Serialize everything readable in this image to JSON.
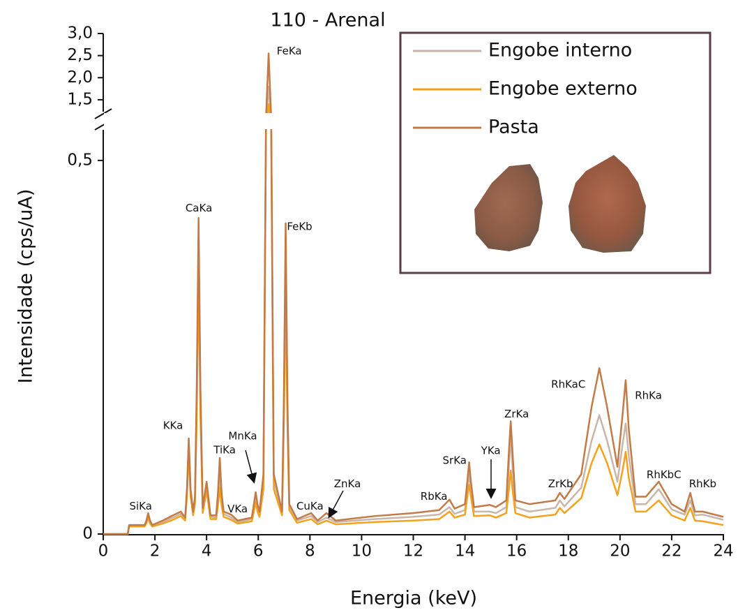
{
  "chart_data": {
    "type": "line",
    "title": "110 - Arenal",
    "x_label": "Energia (keV)",
    "y_label": "Intensidade (cps/uA)",
    "xlim": [
      0,
      24
    ],
    "xticks": [
      0,
      2,
      4,
      6,
      8,
      10,
      12,
      14,
      16,
      18,
      20,
      22,
      24
    ],
    "ylim": [
      0,
      3.0
    ],
    "y_break": [
      0.54,
      1.23
    ],
    "yticks": [
      0,
      {
        "value": 0.5,
        "label": "0,5"
      },
      {
        "value": 1.5,
        "label": "1,5"
      },
      {
        "value": 2.0,
        "label": "2,0"
      },
      {
        "value": 2.5,
        "label": "2,5"
      },
      {
        "value": 3.0,
        "label": "3,0"
      }
    ],
    "x": [
      0,
      0.95,
      1.0,
      1.6,
      1.67,
      1.74,
      1.81,
      1.9,
      2.3,
      2.7,
      3.0,
      3.17,
      3.24,
      3.31,
      3.38,
      3.48,
      3.55,
      3.62,
      3.69,
      3.76,
      3.85,
      4.0,
      4.15,
      4.37,
      4.44,
      4.51,
      4.58,
      4.66,
      4.95,
      5.2,
      5.75,
      5.83,
      5.9,
      5.97,
      6.05,
      6.2,
      6.3,
      6.4,
      6.5,
      6.6,
      6.92,
      6.99,
      7.06,
      7.13,
      7.2,
      7.5,
      8.05,
      8.3,
      8.64,
      9.0,
      10.5,
      12.0,
      13.0,
      13.4,
      13.6,
      14.0,
      14.09,
      14.16,
      14.23,
      14.35,
      14.96,
      15.2,
      15.6,
      15.7,
      15.77,
      15.84,
      15.95,
      16.5,
      17.5,
      17.67,
      17.85,
      18.5,
      18.9,
      19.2,
      19.5,
      19.9,
      20.1,
      20.22,
      20.34,
      20.6,
      21.0,
      21.5,
      22.0,
      22.5,
      22.72,
      22.9,
      23.2,
      24
    ],
    "series": [
      {
        "name": "Engobe interno",
        "color": "#c9b6aa",
        "values": [
          0,
          0,
          0.011,
          0.011,
          0.016,
          0.025,
          0.016,
          0.011,
          0.016,
          0.022,
          0.027,
          0.02,
          0.058,
          0.125,
          0.058,
          0.028,
          0.045,
          0.185,
          0.395,
          0.185,
          0.032,
          0.065,
          0.023,
          0.022,
          0.045,
          0.08,
          0.045,
          0.027,
          0.022,
          0.016,
          0.02,
          0.036,
          0.05,
          0.036,
          0.027,
          0.07,
          0.8,
          1.8,
          0.8,
          0.07,
          0.028,
          0.165,
          0.38,
          0.165,
          0.037,
          0.018,
          0.024,
          0.016,
          0.022,
          0.016,
          0.02,
          0.023,
          0.026,
          0.036,
          0.027,
          0.032,
          0.06,
          0.08,
          0.06,
          0.03,
          0.03,
          0.028,
          0.036,
          0.09,
          0.13,
          0.09,
          0.036,
          0.03,
          0.035,
          0.045,
          0.037,
          0.062,
          0.125,
          0.159,
          0.125,
          0.07,
          0.12,
          0.148,
          0.105,
          0.04,
          0.04,
          0.06,
          0.033,
          0.026,
          0.045,
          0.025,
          0.026,
          0.019
        ]
      },
      {
        "name": "Engobe externo",
        "color": "#f4a21d",
        "values": [
          0,
          0,
          0.01,
          0.01,
          0.014,
          0.022,
          0.014,
          0.01,
          0.014,
          0.019,
          0.024,
          0.018,
          0.05,
          0.11,
          0.05,
          0.025,
          0.04,
          0.16,
          0.35,
          0.16,
          0.028,
          0.058,
          0.02,
          0.02,
          0.038,
          0.062,
          0.038,
          0.023,
          0.019,
          0.014,
          0.017,
          0.03,
          0.042,
          0.03,
          0.023,
          0.06,
          0.7,
          1.4,
          0.7,
          0.06,
          0.025,
          0.145,
          0.33,
          0.145,
          0.032,
          0.015,
          0.02,
          0.013,
          0.018,
          0.013,
          0.016,
          0.018,
          0.02,
          0.03,
          0.022,
          0.026,
          0.05,
          0.066,
          0.05,
          0.024,
          0.025,
          0.022,
          0.028,
          0.06,
          0.085,
          0.06,
          0.028,
          0.022,
          0.026,
          0.035,
          0.028,
          0.048,
          0.095,
          0.12,
          0.095,
          0.052,
          0.085,
          0.11,
          0.075,
          0.03,
          0.03,
          0.045,
          0.025,
          0.018,
          0.035,
          0.018,
          0.017,
          0.012
        ]
      },
      {
        "name": "Pasta",
        "color": "#c27a46",
        "values": [
          0,
          0,
          0.012,
          0.012,
          0.018,
          0.028,
          0.018,
          0.012,
          0.018,
          0.025,
          0.03,
          0.022,
          0.06,
          0.128,
          0.06,
          0.03,
          0.05,
          0.2,
          0.423,
          0.2,
          0.035,
          0.07,
          0.025,
          0.025,
          0.055,
          0.102,
          0.055,
          0.03,
          0.026,
          0.018,
          0.022,
          0.04,
          0.056,
          0.04,
          0.03,
          0.08,
          1.0,
          2.55,
          1.0,
          0.08,
          0.03,
          0.18,
          0.416,
          0.18,
          0.04,
          0.02,
          0.028,
          0.018,
          0.028,
          0.018,
          0.024,
          0.028,
          0.032,
          0.046,
          0.034,
          0.04,
          0.07,
          0.096,
          0.07,
          0.036,
          0.039,
          0.036,
          0.045,
          0.11,
          0.151,
          0.11,
          0.045,
          0.04,
          0.045,
          0.055,
          0.047,
          0.08,
          0.17,
          0.222,
          0.17,
          0.09,
          0.16,
          0.206,
          0.14,
          0.05,
          0.05,
          0.07,
          0.04,
          0.03,
          0.055,
          0.03,
          0.03,
          0.023
        ]
      }
    ],
    "annotations": [
      {
        "text": "SiKa",
        "x": 1.45,
        "y": 0.037
      },
      {
        "text": "KKa",
        "x": 2.7,
        "y": 0.145
      },
      {
        "text": "CaKa",
        "x": 3.7,
        "y": 0.436
      },
      {
        "text": "TiKa",
        "x": 4.7,
        "y": 0.112
      },
      {
        "text": "VKa",
        "x": 5.2,
        "y": 0.033
      },
      {
        "text": "MnKa",
        "x": 5.4,
        "y": 0.131
      },
      {
        "text": "FeKa",
        "x": 7.2,
        "y": 2.6
      },
      {
        "text": "FeKb",
        "x": 7.6,
        "y": 0.411
      },
      {
        "text": "CuKa",
        "x": 8.0,
        "y": 0.037
      },
      {
        "text": "ZnKa",
        "x": 9.45,
        "y": 0.067
      },
      {
        "text": "RbKa",
        "x": 12.8,
        "y": 0.05
      },
      {
        "text": "SrKa",
        "x": 13.6,
        "y": 0.098
      },
      {
        "text": "YKa",
        "x": 15.0,
        "y": 0.111
      },
      {
        "text": "ZrKa",
        "x": 16.0,
        "y": 0.16
      },
      {
        "text": "ZrKb",
        "x": 17.7,
        "y": 0.067
      },
      {
        "text": "RhKaC",
        "x": 18.0,
        "y": 0.2
      },
      {
        "text": "RhKa",
        "x": 21.1,
        "y": 0.185
      },
      {
        "text": "RhKbC",
        "x": 21.7,
        "y": 0.079
      },
      {
        "text": "RhKb",
        "x": 23.2,
        "y": 0.067
      }
    ]
  }
}
